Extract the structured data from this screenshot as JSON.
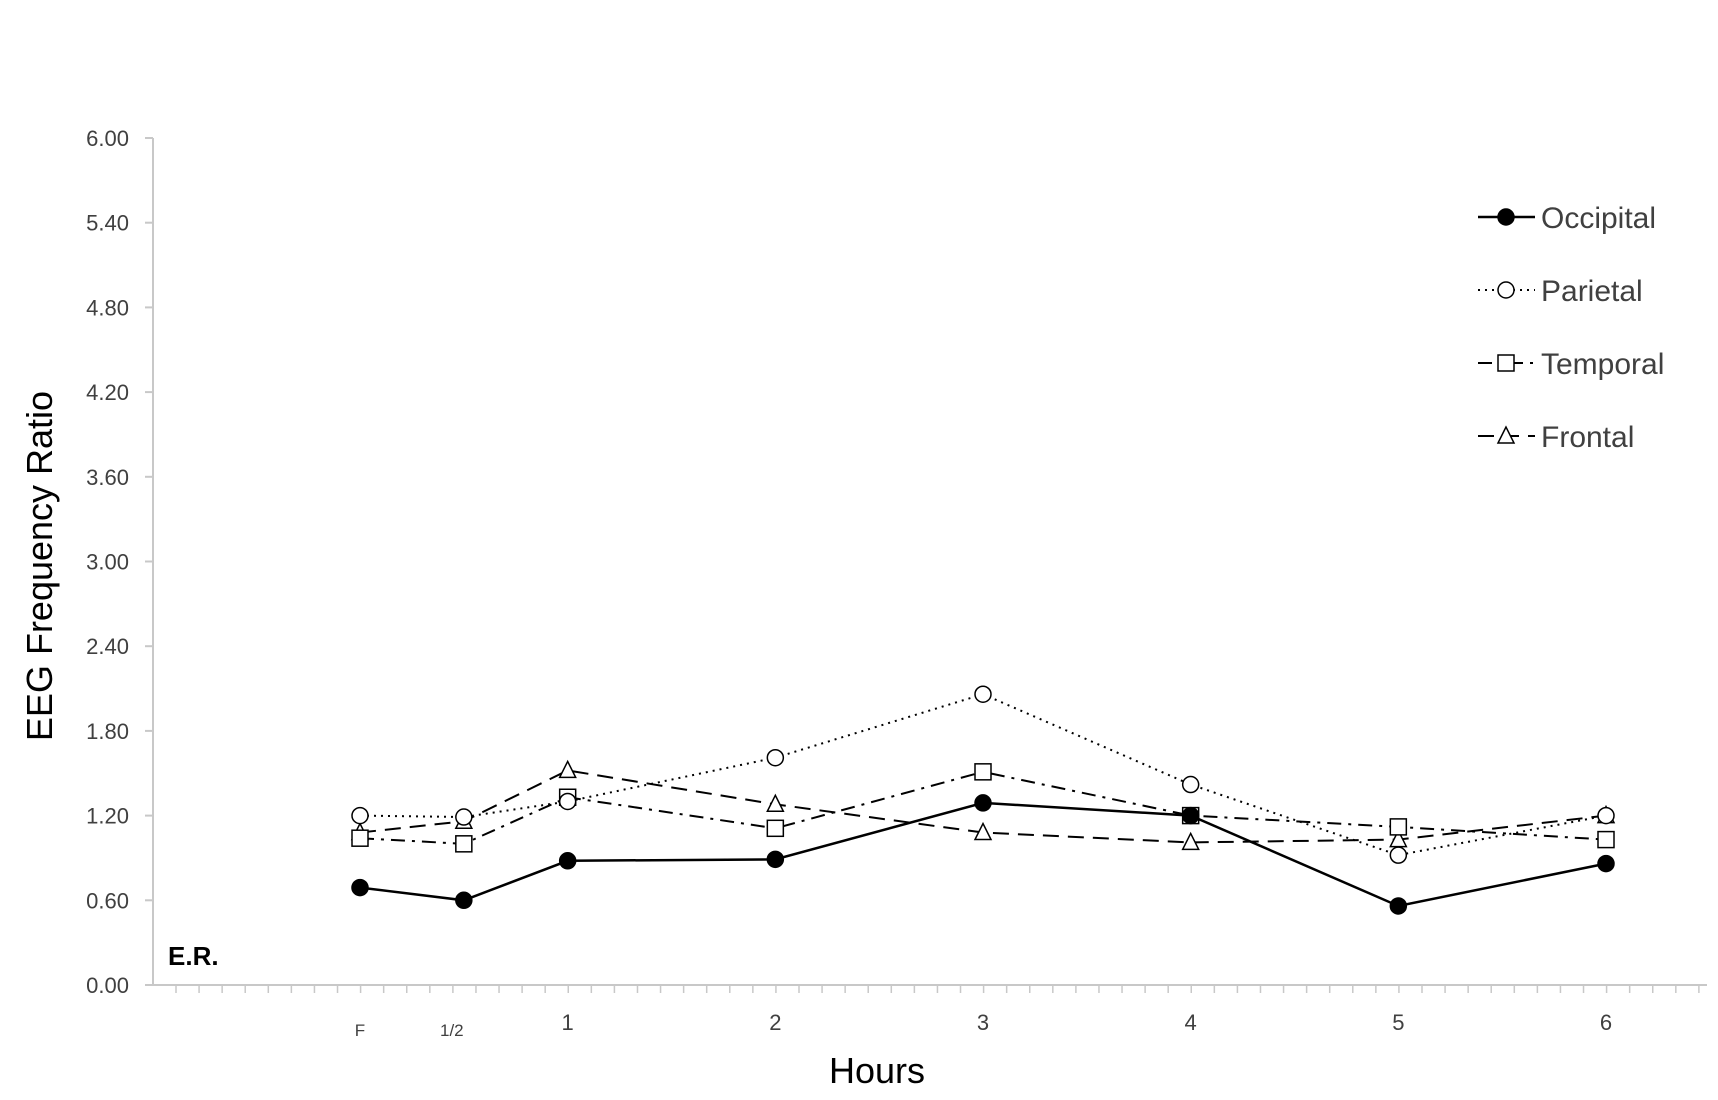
{
  "chart_data": {
    "type": "line",
    "x_labels": [
      "F",
      "1/2",
      "1",
      "2",
      "3",
      "4",
      "5",
      "6"
    ],
    "x": [
      0,
      0.5,
      1,
      2,
      3,
      4,
      5,
      6
    ],
    "xlabel": "Hours",
    "ylabel": "EEG Frequency Ratio",
    "ylim": [
      0,
      6
    ],
    "y_ticks": [
      "0.00",
      "0.60",
      "1.20",
      "1.80",
      "2.40",
      "3.00",
      "3.60",
      "4.20",
      "4.80",
      "5.40",
      "6.00"
    ],
    "y_tick_values": [
      0,
      0.6,
      1.2,
      1.8,
      2.4,
      3.0,
      3.6,
      4.2,
      4.8,
      5.4,
      6.0
    ],
    "grid": false,
    "legend_position": "top-right",
    "annotation": "E.R.",
    "series": [
      {
        "name": "Occipital",
        "marker": "filled-circle",
        "line": "solid",
        "values": [
          0.69,
          0.6,
          0.88,
          0.89,
          1.29,
          1.2,
          0.56,
          0.86
        ]
      },
      {
        "name": "Parietal",
        "marker": "open-circle",
        "line": "dotted",
        "values": [
          1.2,
          1.19,
          1.3,
          1.61,
          2.06,
          1.42,
          0.92,
          1.2
        ]
      },
      {
        "name": "Temporal",
        "marker": "open-square",
        "line": "dash-dot",
        "values": [
          1.04,
          1.0,
          1.33,
          1.11,
          1.51,
          1.2,
          1.12,
          1.03
        ]
      },
      {
        "name": "Frontal",
        "marker": "open-triangle",
        "line": "dashed",
        "values": [
          1.08,
          1.16,
          1.52,
          1.28,
          1.08,
          1.01,
          1.03,
          1.2
        ]
      }
    ],
    "colors": {
      "line": "#000000",
      "axis": "#c8c8c8",
      "text": "#404040"
    }
  }
}
